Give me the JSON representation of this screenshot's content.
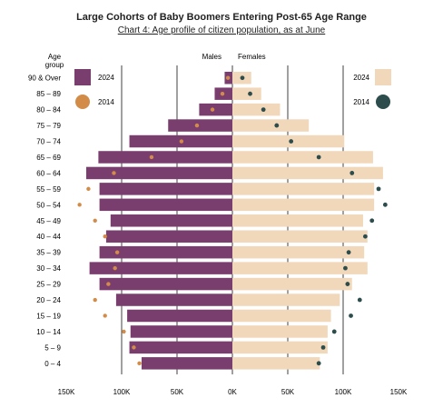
{
  "chart_data": {
    "type": "bar",
    "title": "Large Cohorts of Baby Boomers Entering Post-65 Age Range",
    "subtitle": "Chart 4: Age profile of citizen population, as at June",
    "age_axis_label": "Age group",
    "males_label": "Males",
    "females_label": "Females",
    "categories": [
      "90 & Over",
      "85 – 89",
      "80 – 84",
      "75 – 79",
      "70 – 74",
      "65 – 69",
      "60 – 64",
      "55 – 59",
      "50 – 54",
      "45 – 49",
      "40 – 44",
      "35 – 39",
      "30 – 34",
      "25 – 29",
      "20 – 24",
      "15 – 19",
      "10 – 14",
      "5 – 9",
      "0 – 4"
    ],
    "xlim": [
      -150000,
      150000
    ],
    "x_ticks": [
      -150000,
      -100000,
      -50000,
      0,
      50000,
      100000,
      150000
    ],
    "x_tick_labels": [
      "150K",
      "100K",
      "50K",
      "0K",
      "50K",
      "100K",
      "150K"
    ],
    "grid": true,
    "series": [
      {
        "name": "2024",
        "kind": "bar",
        "side": "males",
        "values": [
          7000,
          16000,
          30000,
          58000,
          93000,
          121000,
          132000,
          120000,
          120000,
          110000,
          114000,
          120000,
          129000,
          120000,
          105000,
          95000,
          92000,
          93000,
          82000
        ]
      },
      {
        "name": "2024",
        "kind": "bar",
        "side": "females",
        "values": [
          17000,
          26000,
          43000,
          69000,
          101000,
          127000,
          136000,
          128000,
          128000,
          118000,
          122000,
          119000,
          122000,
          108000,
          97000,
          89000,
          86000,
          86000,
          79000
        ]
      },
      {
        "name": "2014",
        "kind": "dot",
        "side": "males",
        "values": [
          4000,
          9000,
          18000,
          32000,
          46000,
          73000,
          107000,
          130000,
          138000,
          124000,
          115000,
          104000,
          106000,
          112000,
          124000,
          115000,
          98000,
          89000,
          84000
        ]
      },
      {
        "name": "2014",
        "kind": "dot",
        "side": "females",
        "values": [
          9000,
          16000,
          28000,
          40000,
          53000,
          78000,
          108000,
          132000,
          138000,
          126000,
          120000,
          105000,
          102000,
          104000,
          115000,
          107000,
          92000,
          82000,
          78000
        ]
      }
    ],
    "legend": {
      "left": [
        {
          "label": "2024",
          "color": "#7a3e6e",
          "shape": "square"
        },
        {
          "label": "2014",
          "color": "#d28c48",
          "shape": "circle"
        }
      ],
      "right": [
        {
          "label": "2024",
          "color": "#f2d8ba",
          "shape": "square"
        },
        {
          "label": "2014",
          "color": "#2d4c4c",
          "shape": "circle"
        }
      ]
    },
    "colors": {
      "male_bar": "#7a3e6e",
      "female_bar": "#f2d8ba",
      "male_dot": "#d28c48",
      "female_dot": "#2d4c4c"
    }
  }
}
